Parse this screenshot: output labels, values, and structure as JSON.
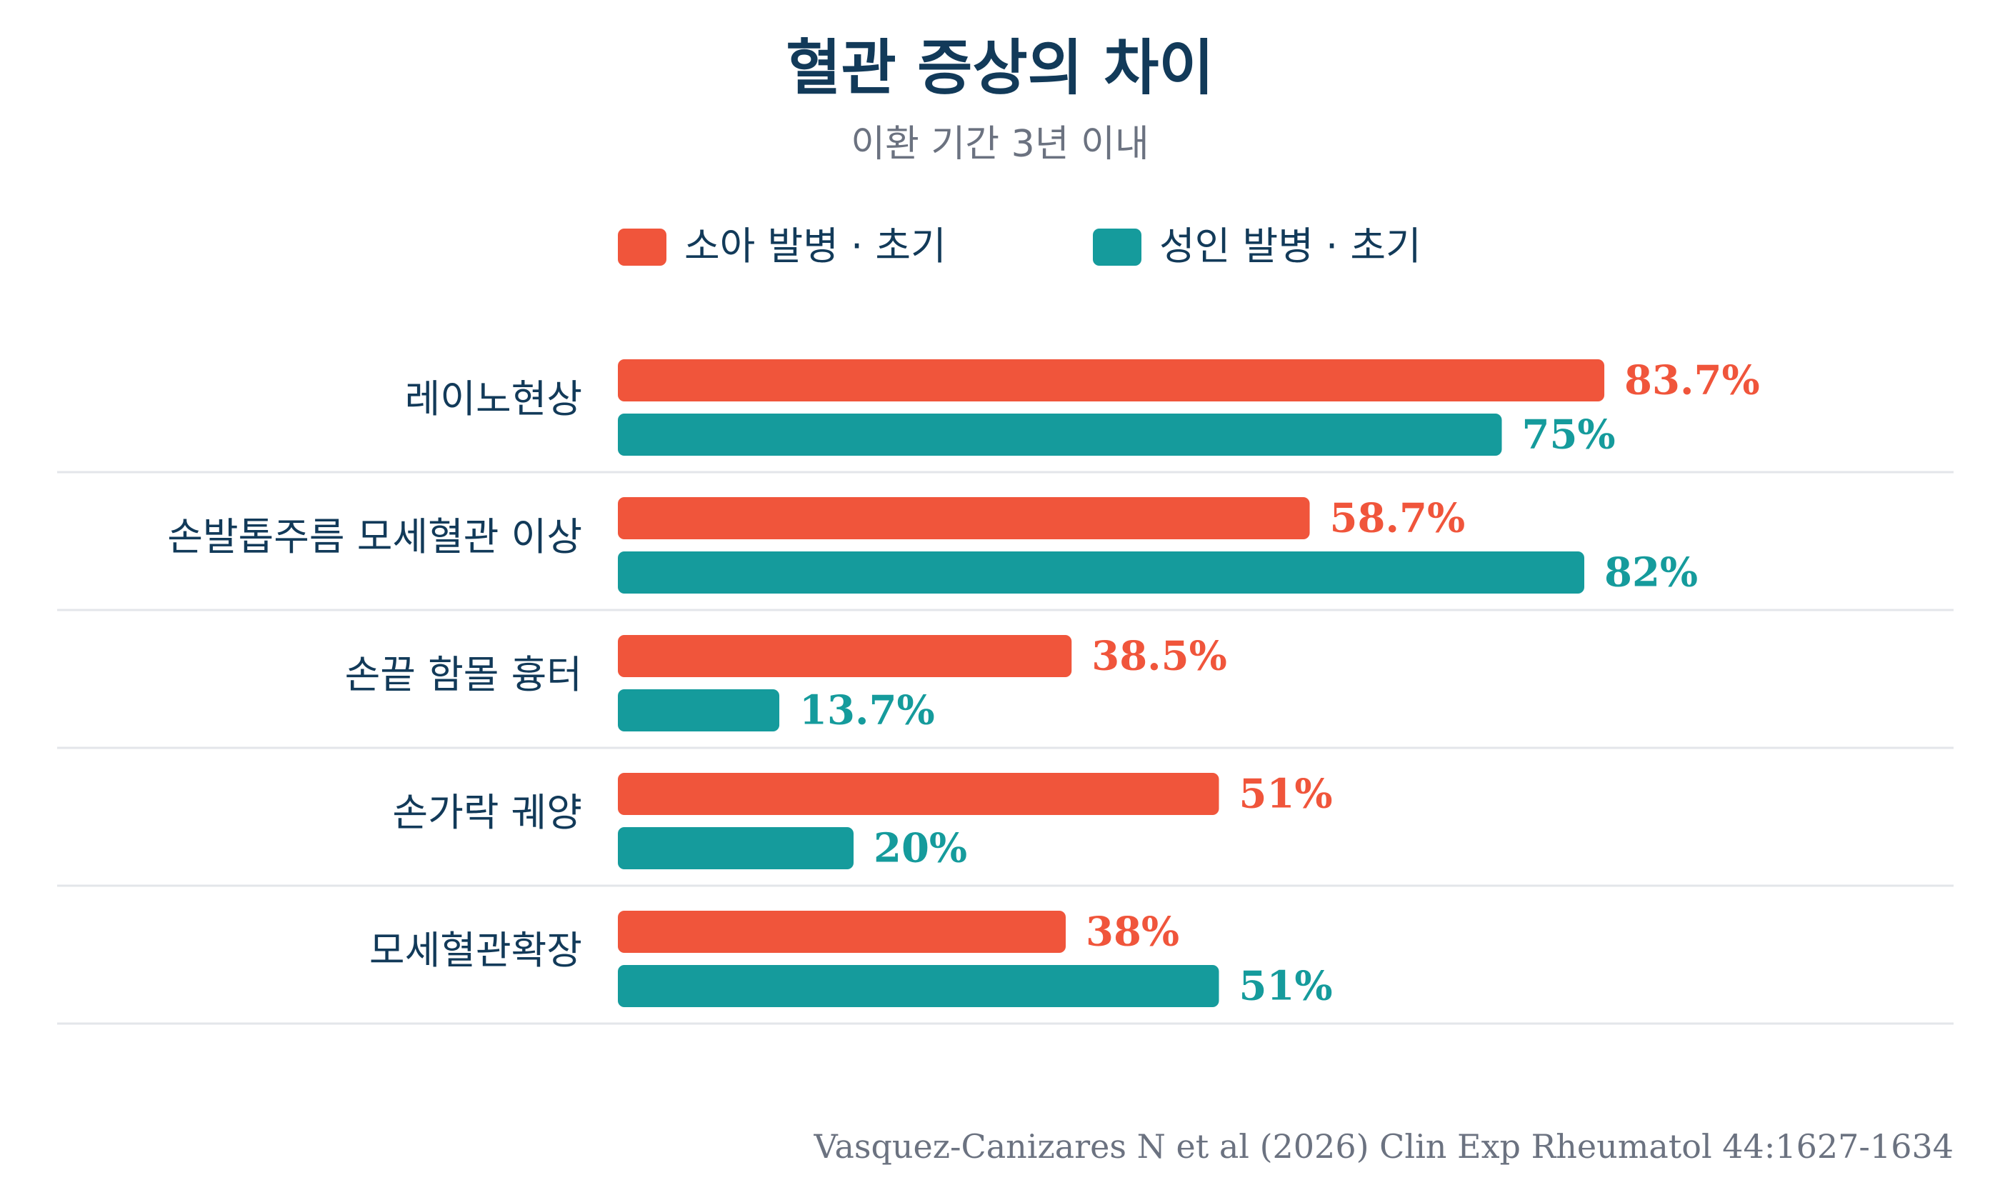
{
  "chart_data": {
    "type": "bar",
    "orientation": "horizontal",
    "title": "혈관 증상의 차이",
    "subtitle": "이환 기간 3년 이내",
    "categories": [
      "레이노현상",
      "손발톱주름 모세혈관 이상",
      "손끝 함몰 흉터",
      "손가락 궤양",
      "모세혈관확장"
    ],
    "series": [
      {
        "name": "소아 발병 · 초기",
        "color": "#F0553B",
        "values": [
          83.7,
          58.7,
          38.5,
          51,
          38
        ],
        "labels": [
          "83.7%",
          "58.7%",
          "38.5%",
          "51%",
          "38%"
        ]
      },
      {
        "name": "성인 발병 · 초기",
        "color": "#159B9C",
        "values": [
          75,
          82,
          13.7,
          20,
          51
        ],
        "labels": [
          "75%",
          "82%",
          "13.7%",
          "20%",
          "51%"
        ]
      }
    ],
    "xlim": [
      0,
      100
    ],
    "grid": false,
    "legend_position": "top",
    "source": "Vasquez-Canizares N et al (2026) Clin Exp Rheumatol 44:1627-1634"
  },
  "colors": {
    "title": "#123A59",
    "subtitle": "#6B7280",
    "category_label": "#123A59",
    "separator": "#E3E6EA",
    "source": "#6B7280"
  }
}
